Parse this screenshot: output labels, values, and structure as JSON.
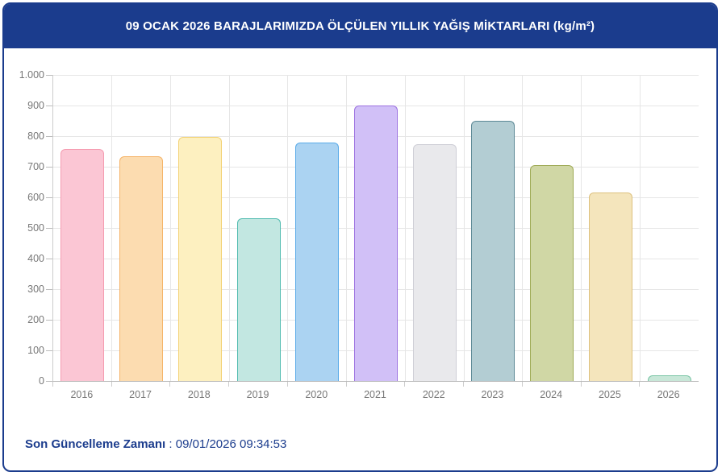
{
  "header": {
    "title": "09 OCAK 2026 BARAJLARIMIZDA ÖLÇÜLEN YILLIK YAĞIŞ MİKTARLARI (kg/m²)"
  },
  "footer": {
    "label": "Son Güncelleme Zamanı",
    "separator": " : ",
    "timestamp": "09/01/2026 09:34:53"
  },
  "colors": {
    "accent_navy": "#1b3c8d",
    "grid": "#e6e6e6",
    "axis": "#b9b9b9",
    "tick_text": "#777777",
    "chart_bg": "#ffffff"
  },
  "chart_data": {
    "type": "bar",
    "title": "09 OCAK 2026 BARAJLARIMIZDA ÖLÇÜLEN YILLIK YAĞIŞ MİKTARLARI (kg/m²)",
    "categories": [
      "2016",
      "2017",
      "2018",
      "2019",
      "2020",
      "2021",
      "2022",
      "2023",
      "2024",
      "2025",
      "2026"
    ],
    "values": [
      757,
      733,
      798,
      532,
      778,
      900,
      774,
      850,
      706,
      617,
      18
    ],
    "bar_fill_colors": [
      "#fbc6d4",
      "#fcdcb0",
      "#fdf0c0",
      "#c2e7e1",
      "#abd3f2",
      "#d1c0f7",
      "#e9e9ec",
      "#b3cdd3",
      "#d0d7a5",
      "#f4e5bc",
      "#c8e7d8"
    ],
    "bar_border_colors": [
      "#f59bb0",
      "#f5b469",
      "#f3d274",
      "#52bcb0",
      "#5aabe8",
      "#9c72e0",
      "#cfcfd6",
      "#5d8996",
      "#9fab57",
      "#ddc17e",
      "#79c4a5"
    ],
    "xlabel": "",
    "ylabel": "",
    "ylim": [
      0,
      1000
    ],
    "ytick_step": 100,
    "ytick_labels": [
      "0",
      "100",
      "200",
      "300",
      "400",
      "500",
      "600",
      "700",
      "800",
      "900",
      "1.000"
    ],
    "grid": true,
    "legend": "none"
  }
}
